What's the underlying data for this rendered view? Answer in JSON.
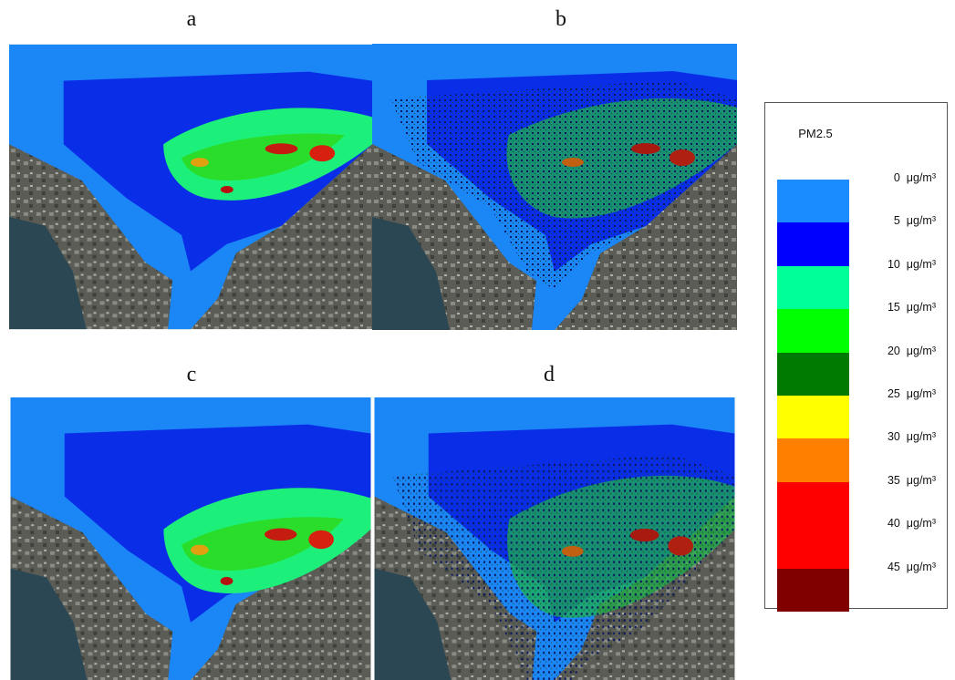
{
  "panels": [
    {
      "label": "a"
    },
    {
      "label": "b"
    },
    {
      "label": "c"
    },
    {
      "label": "d"
    }
  ],
  "legend": {
    "title": "PM2.5",
    "items": [
      {
        "label": "0  μg/m³",
        "color": "#1a8cff"
      },
      {
        "label": "5  μg/m³",
        "color": "#0000ff"
      },
      {
        "label": "10  μg/m³",
        "color": "#00ff99"
      },
      {
        "label": "15  μg/m³",
        "color": "#00ff00"
      },
      {
        "label": "20  μg/m³",
        "color": "#007a00"
      },
      {
        "label": "25  μg/m³",
        "color": "#ffff00"
      },
      {
        "label": "30  μg/m³",
        "color": "#ff8000"
      },
      {
        "label": "35  μg/m³",
        "color": "#ff0000"
      },
      {
        "label": "40  μg/m³",
        "color": "#ff0000"
      },
      {
        "label": "45  μg/m³",
        "color": "#800000"
      }
    ]
  }
}
